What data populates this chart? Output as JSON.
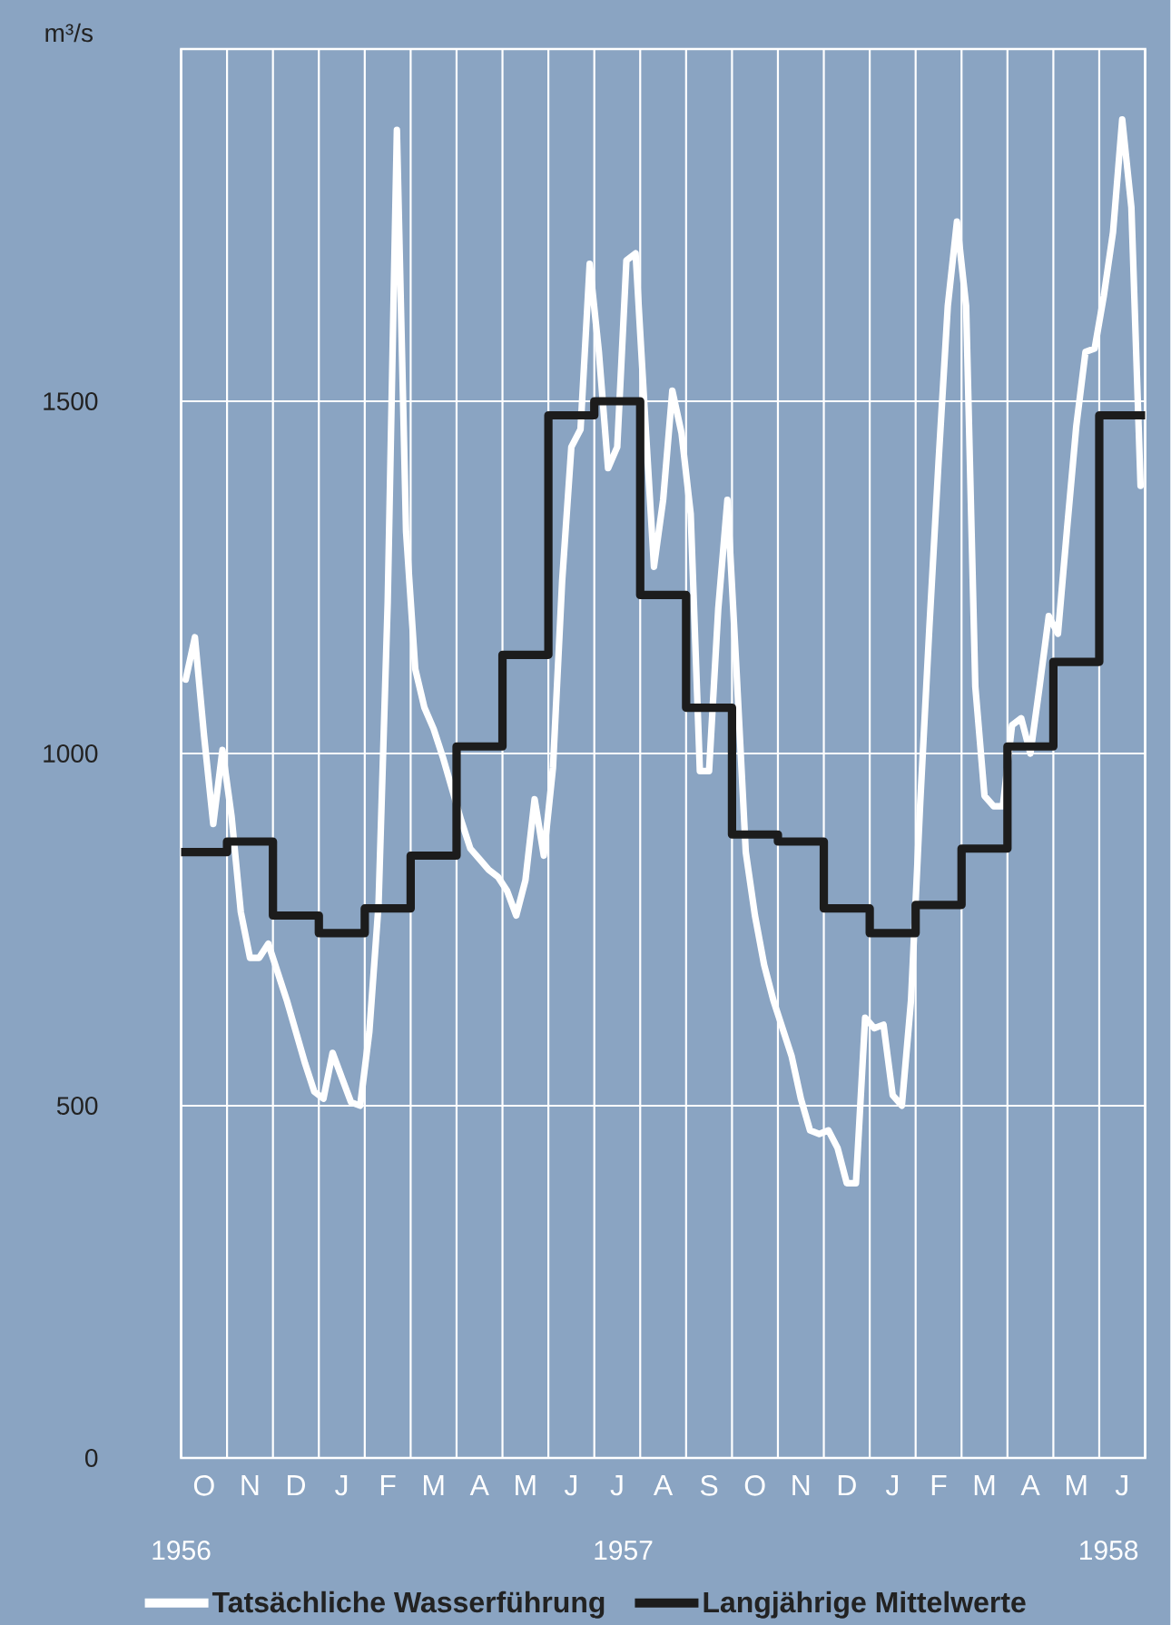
{
  "chart_data": {
    "type": "line",
    "ylabel": "m³/s",
    "categories": [
      null,
      null,
      "O",
      null,
      null,
      null,
      null,
      "N",
      null,
      null,
      null,
      null,
      "D",
      null,
      null,
      null,
      null,
      "J",
      null,
      null,
      null,
      null,
      "F",
      null,
      null,
      null,
      null,
      "M",
      null,
      null,
      null,
      null,
      "A",
      null,
      null,
      null,
      null,
      "M",
      null,
      null,
      null,
      null,
      "J",
      null,
      null,
      null,
      null,
      "J",
      null,
      null,
      null,
      null,
      "A",
      null,
      null,
      null,
      null,
      "S",
      null,
      null,
      null,
      null,
      "O",
      null,
      null,
      null,
      null,
      "N",
      null,
      null,
      null,
      null,
      "D",
      null,
      null,
      null,
      null,
      "J",
      null,
      null,
      null,
      null,
      "F",
      null,
      null,
      null,
      null,
      "M",
      null,
      null,
      null,
      null,
      "A",
      null,
      null,
      null,
      null,
      "M",
      null,
      null,
      null,
      null,
      "J",
      null,
      null
    ],
    "ylim": [
      0,
      2000
    ],
    "yticks": [
      0,
      500,
      1000,
      1500
    ],
    "grid": true,
    "legend": "bottom",
    "annotations": [
      "1956",
      "1957",
      "1958"
    ],
    "series": [
      {
        "name": "Tatsächliche Wasserführung",
        "color": "#ffffff",
        "values": [
          1105,
          1165,
          1025,
          900,
          1005,
          910,
          775,
          710,
          710,
          730,
          690,
          650,
          605,
          560,
          520,
          510,
          575,
          540,
          505,
          500,
          605,
          785,
          1215,
          1885,
          1315,
          1120,
          1065,
          1035,
          995,
          950,
          905,
          865,
          850,
          835,
          825,
          805,
          770,
          820,
          935,
          855,
          980,
          1245,
          1435,
          1460,
          1695,
          1570,
          1405,
          1435,
          1700,
          1710,
          1485,
          1265,
          1360,
          1515,
          1455,
          1340,
          975,
          975,
          1205,
          1360,
          1115,
          860,
          770,
          700,
          650,
          610,
          570,
          510,
          465,
          460,
          465,
          440,
          390,
          390,
          625,
          610,
          615,
          515,
          500,
          650,
          930,
          1180,
          1415,
          1635,
          1755,
          1635,
          1095,
          940,
          925,
          925,
          1040,
          1050,
          1000,
          1095,
          1195,
          1170,
          1320,
          1465,
          1570,
          1575,
          1650,
          1740,
          1900,
          1775,
          1380
        ]
      },
      {
        "name": "Langjährige Mittelwerte",
        "type": "step",
        "color": "#1c1c1c",
        "values": [
          860,
          860,
          860,
          860,
          860,
          875,
          875,
          875,
          875,
          875,
          770,
          770,
          770,
          770,
          770,
          745,
          745,
          745,
          745,
          745,
          780,
          780,
          780,
          780,
          780,
          855,
          855,
          855,
          855,
          855,
          1010,
          1010,
          1010,
          1010,
          1010,
          1140,
          1140,
          1140,
          1140,
          1140,
          1480,
          1480,
          1480,
          1480,
          1480,
          1500,
          1500,
          1500,
          1500,
          1500,
          1225,
          1225,
          1225,
          1225,
          1225,
          1065,
          1065,
          1065,
          1065,
          1065,
          885,
          885,
          885,
          885,
          885,
          875,
          875,
          875,
          875,
          875,
          780,
          780,
          780,
          780,
          780,
          745,
          745,
          745,
          745,
          745,
          785,
          785,
          785,
          785,
          785,
          865,
          865,
          865,
          865,
          865,
          1010,
          1010,
          1010,
          1010,
          1010,
          1130,
          1130,
          1130,
          1130,
          1130,
          1480,
          1480,
          1480,
          1480,
          1480
        ]
      }
    ]
  }
}
